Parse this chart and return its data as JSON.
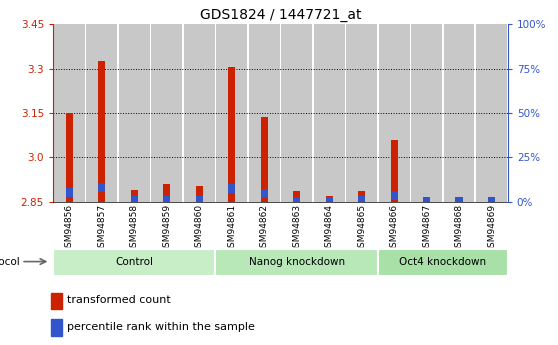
{
  "title": "GDS1824 / 1447721_at",
  "samples": [
    "GSM94856",
    "GSM94857",
    "GSM94858",
    "GSM94859",
    "GSM94860",
    "GSM94861",
    "GSM94862",
    "GSM94863",
    "GSM94864",
    "GSM94865",
    "GSM94866",
    "GSM94867",
    "GSM94868",
    "GSM94869"
  ],
  "red_values": [
    3.15,
    3.325,
    2.89,
    2.91,
    2.905,
    3.305,
    3.135,
    2.885,
    2.87,
    2.885,
    3.06,
    2.855,
    2.855,
    2.855
  ],
  "blue_percentile": [
    10,
    10,
    8,
    10,
    10,
    10,
    10,
    4,
    7,
    10,
    10,
    10,
    10,
    10
  ],
  "ymin": 2.85,
  "ymax": 3.45,
  "yticks_left": [
    2.85,
    3.0,
    3.15,
    3.3,
    3.45
  ],
  "yticks_right": [
    0,
    25,
    50,
    75,
    100
  ],
  "groups": [
    {
      "label": "Control",
      "start": 0,
      "end": 5
    },
    {
      "label": "Nanog knockdown",
      "start": 5,
      "end": 10
    },
    {
      "label": "Oct4 knockdown",
      "start": 10,
      "end": 14
    }
  ],
  "bar_width": 0.55,
  "red_color": "#cc2200",
  "blue_color": "#3355cc",
  "bar_bg": "#c8c8c8",
  "col_bg_colors": [
    "#d0d0d0",
    "#d0d0d0",
    "#d0d0d0",
    "#d0d0d0",
    "#d0d0d0",
    "#c0c0c0",
    "#c0c0c0",
    "#c0c0c0",
    "#c0c0c0",
    "#c0c0c0",
    "#c8c8c8",
    "#c8c8c8",
    "#c8c8c8",
    "#c8c8c8"
  ],
  "group_colors": [
    "#c8eec8",
    "#b8e8b8",
    "#a8e0a8"
  ],
  "title_fontsize": 10,
  "tick_fontsize": 7.5,
  "label_fontsize": 6.5,
  "legend_fontsize": 8
}
